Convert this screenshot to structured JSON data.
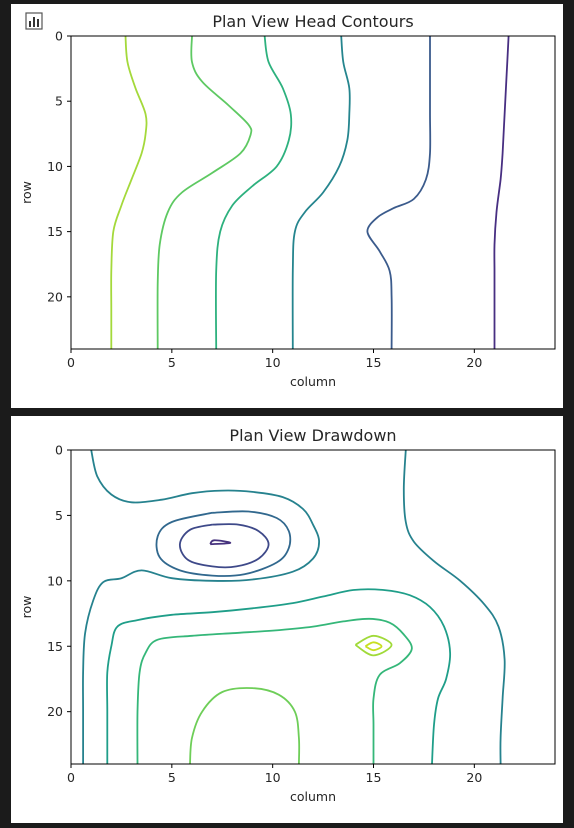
{
  "toolbar": {
    "icon": "bar-chart-icon"
  },
  "chart_data": [
    {
      "type": "contour",
      "title": "Plan View Head Contours",
      "xlabel": "column",
      "ylabel": "row",
      "xlim": [
        0,
        24
      ],
      "ylim": [
        24,
        0
      ],
      "y_inverted": true,
      "xticks": [
        0,
        5,
        10,
        15,
        20
      ],
      "yticks": [
        0,
        5,
        10,
        15,
        20
      ],
      "grid": false,
      "levels": [
        {
          "color": "#a4d93b",
          "points": [
            [
              2.7,
              0
            ],
            [
              2.8,
              2
            ],
            [
              3.2,
              4
            ],
            [
              3.7,
              6
            ],
            [
              3.7,
              7.5
            ],
            [
              3.5,
              9
            ],
            [
              3.0,
              11
            ],
            [
              2.5,
              13
            ],
            [
              2.1,
              15
            ],
            [
              2.0,
              18
            ],
            [
              2.0,
              21
            ],
            [
              2.0,
              24
            ]
          ]
        },
        {
          "color": "#5ec962",
          "points": [
            [
              6.0,
              0
            ],
            [
              6.0,
              2
            ],
            [
              6.5,
              3.5
            ],
            [
              7.8,
              5.3
            ],
            [
              8.8,
              6.8
            ],
            [
              8.9,
              7.6
            ],
            [
              8.4,
              9.0
            ],
            [
              7.0,
              10.5
            ],
            [
              5.5,
              12.0
            ],
            [
              4.8,
              13.5
            ],
            [
              4.4,
              16
            ],
            [
              4.3,
              19
            ],
            [
              4.3,
              24
            ]
          ]
        },
        {
          "color": "#2db17e",
          "points": [
            [
              9.6,
              0
            ],
            [
              9.8,
              2
            ],
            [
              10.5,
              4
            ],
            [
              10.9,
              6
            ],
            [
              10.8,
              8
            ],
            [
              10.2,
              10
            ],
            [
              9.0,
              11.5
            ],
            [
              8.0,
              13
            ],
            [
              7.4,
              15
            ],
            [
              7.2,
              18
            ],
            [
              7.2,
              24
            ]
          ]
        },
        {
          "color": "#25858e",
          "points": [
            [
              13.4,
              0
            ],
            [
              13.5,
              2
            ],
            [
              13.8,
              4
            ],
            [
              13.8,
              6
            ],
            [
              13.7,
              8
            ],
            [
              13.3,
              10
            ],
            [
              12.5,
              12
            ],
            [
              11.6,
              13.5
            ],
            [
              11.1,
              15
            ],
            [
              11.0,
              18
            ],
            [
              11.0,
              24
            ]
          ]
        },
        {
          "color": "#3b5b8c",
          "points": [
            [
              17.8,
              0
            ],
            [
              17.8,
              3
            ],
            [
              17.8,
              6
            ],
            [
              17.8,
              9
            ],
            [
              17.6,
              11
            ],
            [
              17.0,
              12.5
            ],
            [
              16.0,
              13.2
            ],
            [
              15.2,
              13.9
            ],
            [
              14.7,
              15
            ],
            [
              15.3,
              16.5
            ],
            [
              15.8,
              18
            ],
            [
              15.9,
              20
            ],
            [
              15.9,
              24
            ]
          ]
        },
        {
          "color": "#482f82",
          "points": [
            [
              21.7,
              0
            ],
            [
              21.6,
              3
            ],
            [
              21.5,
              6
            ],
            [
              21.4,
              9
            ],
            [
              21.3,
              11
            ],
            [
              21.1,
              13.5
            ],
            [
              21.0,
              16
            ],
            [
              21.0,
              18
            ],
            [
              21.0,
              20
            ],
            [
              21.0,
              24
            ]
          ]
        }
      ]
    },
    {
      "type": "contour",
      "title": "Plan View Drawdown",
      "xlabel": "column",
      "ylabel": "row",
      "xlim": [
        0,
        24
      ],
      "ylim": [
        24,
        0
      ],
      "y_inverted": true,
      "xticks": [
        0,
        5,
        10,
        15,
        20
      ],
      "yticks": [
        0,
        5,
        10,
        15,
        20
      ],
      "grid": false,
      "levels": [
        {
          "color": "#46327e",
          "points": [
            [
              6.9,
              7.2
            ],
            [
              7.9,
              7.1
            ],
            [
              7.1,
              6.9
            ],
            [
              6.9,
              7.2
            ]
          ]
        },
        {
          "color": "#3e4989",
          "points": [
            [
              7.0,
              5.7
            ],
            [
              8.3,
              5.7
            ],
            [
              9.3,
              6.2
            ],
            [
              9.8,
              7.2
            ],
            [
              9.3,
              8.3
            ],
            [
              8.2,
              8.9
            ],
            [
              7.0,
              8.9
            ],
            [
              5.8,
              8.4
            ],
            [
              5.4,
              7.2
            ],
            [
              5.9,
              6.1
            ],
            [
              7.0,
              5.7
            ]
          ]
        },
        {
          "color": "#31688e",
          "points": [
            [
              7.0,
              4.8
            ],
            [
              8.8,
              4.7
            ],
            [
              10.2,
              5.2
            ],
            [
              10.8,
              6.2
            ],
            [
              10.8,
              7.5
            ],
            [
              10.2,
              8.6
            ],
            [
              8.6,
              9.5
            ],
            [
              7.0,
              9.6
            ],
            [
              5.4,
              9.2
            ],
            [
              4.4,
              8.2
            ],
            [
              4.3,
              6.6
            ],
            [
              5.0,
              5.5
            ],
            [
              7.0,
              4.8
            ]
          ]
        },
        {
          "color": "#26828e",
          "points": [
            [
              1.0,
              0
            ],
            [
              1.3,
              2
            ],
            [
              2.0,
              3.4
            ],
            [
              3.0,
              4.0
            ],
            [
              4.5,
              3.8
            ],
            [
              6.0,
              3.3
            ],
            [
              7.5,
              3.1
            ],
            [
              9.0,
              3.2
            ],
            [
              10.5,
              3.6
            ],
            [
              11.5,
              4.5
            ],
            [
              12.0,
              5.7
            ],
            [
              12.3,
              7.0
            ],
            [
              12.0,
              8.3
            ],
            [
              11.0,
              9.3
            ],
            [
              9.0,
              9.9
            ],
            [
              7.0,
              10.0
            ],
            [
              5.0,
              9.8
            ],
            [
              3.5,
              9.2
            ],
            [
              2.5,
              9.8
            ],
            [
              1.6,
              10.1
            ],
            [
              1.1,
              11.5
            ],
            [
              0.7,
              14
            ],
            [
              0.6,
              17
            ],
            [
              0.6,
              20
            ],
            [
              0.6,
              24
            ]
          ]
        },
        {
          "color": "#26828e",
          "points": [
            [
              16.6,
              0
            ],
            [
              16.5,
              3
            ],
            [
              16.6,
              5.5
            ],
            [
              17.0,
              7.0
            ],
            [
              18.0,
              8.5
            ],
            [
              19.3,
              10.0
            ],
            [
              20.5,
              11.8
            ],
            [
              21.2,
              13.5
            ],
            [
              21.5,
              16
            ],
            [
              21.4,
              19
            ],
            [
              21.3,
              22
            ],
            [
              21.3,
              24
            ]
          ]
        },
        {
          "color": "#1f9e89",
          "points": [
            [
              1.8,
              24
            ],
            [
              1.8,
              20
            ],
            [
              1.8,
              17
            ],
            [
              2.0,
              15
            ],
            [
              2.3,
              13.5
            ],
            [
              3.3,
              13.0
            ],
            [
              5.0,
              12.6
            ],
            [
              7.0,
              12.4
            ],
            [
              9.0,
              12.1
            ],
            [
              11.0,
              11.7
            ],
            [
              12.5,
              11.2
            ],
            [
              14.0,
              10.7
            ],
            [
              15.5,
              10.7
            ],
            [
              16.8,
              11.1
            ],
            [
              17.8,
              12.0
            ],
            [
              18.5,
              13.5
            ],
            [
              18.8,
              15.5
            ],
            [
              18.6,
              17.5
            ],
            [
              18.2,
              19
            ],
            [
              18.0,
              21
            ],
            [
              17.9,
              24
            ]
          ]
        },
        {
          "color": "#35b779",
          "points": [
            [
              3.3,
              24
            ],
            [
              3.3,
              20
            ],
            [
              3.4,
              17
            ],
            [
              3.7,
              15.5
            ],
            [
              4.3,
              14.5
            ],
            [
              6.0,
              14.2
            ],
            [
              8.0,
              14.0
            ],
            [
              10.0,
              13.8
            ],
            [
              12.0,
              13.5
            ],
            [
              13.5,
              13.1
            ],
            [
              14.8,
              12.9
            ],
            [
              15.8,
              13.2
            ],
            [
              16.5,
              14.1
            ],
            [
              16.9,
              15.2
            ],
            [
              16.3,
              16.3
            ],
            [
              15.3,
              17.2
            ],
            [
              15.0,
              19
            ],
            [
              15.0,
              21
            ],
            [
              15.0,
              24
            ]
          ]
        },
        {
          "color": "#6ece58",
          "points": [
            [
              5.9,
              24
            ],
            [
              6.0,
              22
            ],
            [
              6.5,
              20
            ],
            [
              7.5,
              18.5
            ],
            [
              9.0,
              18.2
            ],
            [
              10.3,
              18.7
            ],
            [
              11.1,
              20.0
            ],
            [
              11.3,
              22
            ],
            [
              11.3,
              24
            ]
          ]
        },
        {
          "color": "#a0da39",
          "points": [
            [
              14.1,
              14.9
            ],
            [
              15.0,
              14.2
            ],
            [
              15.9,
              14.9
            ],
            [
              15.0,
              15.7
            ],
            [
              14.1,
              14.9
            ]
          ]
        },
        {
          "color": "#c8e020",
          "points": [
            [
              14.6,
              15.0
            ],
            [
              15.0,
              14.7
            ],
            [
              15.4,
              15.0
            ],
            [
              15.0,
              15.3
            ],
            [
              14.6,
              15.0
            ]
          ]
        }
      ]
    }
  ]
}
